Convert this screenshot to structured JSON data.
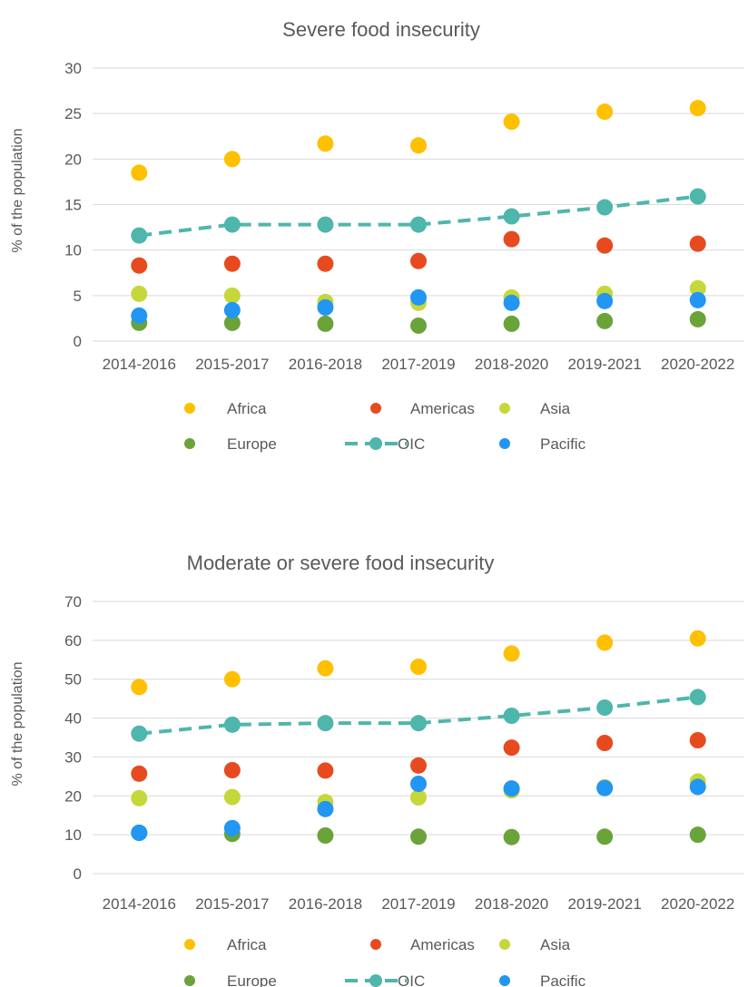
{
  "chart_data": [
    {
      "type": "scatter",
      "title": "Severe food insecurity",
      "xlabel": "",
      "ylabel": "% of the population",
      "ylim": [
        0,
        30
      ],
      "yticks": [
        0,
        5,
        10,
        15,
        20,
        25,
        30
      ],
      "grid": true,
      "legend_position": "bottom",
      "categories": [
        "2014-2016",
        "2015-2017",
        "2016-2018",
        "2017-2019",
        "2018-2020",
        "2019-2021",
        "2020-2022"
      ],
      "series": [
        {
          "name": "Africa",
          "style": "marker",
          "color": "#FFC000",
          "values": [
            18.5,
            20.0,
            21.7,
            21.5,
            24.1,
            25.2,
            25.6
          ]
        },
        {
          "name": "Americas",
          "style": "marker",
          "color": "#E84A1F",
          "values": [
            8.3,
            8.5,
            8.5,
            8.8,
            11.2,
            10.5,
            10.7
          ]
        },
        {
          "name": "Asia",
          "style": "marker",
          "color": "#C5D73A",
          "values": [
            5.2,
            5.0,
            4.3,
            4.2,
            4.8,
            5.2,
            5.8
          ]
        },
        {
          "name": "Europe",
          "style": "marker",
          "color": "#6AA339",
          "values": [
            2.0,
            2.0,
            1.9,
            1.7,
            1.9,
            2.2,
            2.4
          ]
        },
        {
          "name": "OIC",
          "style": "dashed-line-marker",
          "color": "#4FB6AC",
          "values": [
            11.6,
            12.8,
            12.8,
            12.8,
            13.7,
            14.7,
            15.9
          ]
        },
        {
          "name": "Pacific",
          "style": "marker",
          "color": "#2196F3",
          "values": [
            2.8,
            3.4,
            3.7,
            4.8,
            4.2,
            4.4,
            4.5
          ]
        }
      ]
    },
    {
      "type": "scatter",
      "title": "Moderate or severe food insecurity",
      "xlabel": "",
      "ylabel": "% of the population",
      "ylim": [
        0,
        70
      ],
      "yticks": [
        0,
        10,
        20,
        30,
        40,
        50,
        60,
        70
      ],
      "grid": true,
      "legend_position": "bottom",
      "categories": [
        "2014-2016",
        "2015-2017",
        "2016-2018",
        "2017-2019",
        "2018-2020",
        "2019-2021",
        "2020-2022"
      ],
      "series": [
        {
          "name": "Africa",
          "style": "marker",
          "color": "#FFC000",
          "values": [
            48.0,
            50.0,
            52.8,
            53.2,
            56.6,
            59.4,
            60.5
          ]
        },
        {
          "name": "Americas",
          "style": "marker",
          "color": "#E84A1F",
          "values": [
            25.7,
            26.6,
            26.5,
            27.8,
            32.4,
            33.6,
            34.3
          ]
        },
        {
          "name": "Asia",
          "style": "marker",
          "color": "#C5D73A",
          "values": [
            19.4,
            19.7,
            18.4,
            19.6,
            21.4,
            22.2,
            23.7
          ]
        },
        {
          "name": "Europe",
          "style": "marker",
          "color": "#6AA339",
          "values": [
            10.5,
            10.2,
            9.8,
            9.5,
            9.4,
            9.5,
            10.0
          ]
        },
        {
          "name": "OIC",
          "style": "dashed-line-marker",
          "color": "#4FB6AC",
          "values": [
            36.0,
            38.3,
            38.7,
            38.7,
            40.6,
            42.7,
            45.4
          ]
        },
        {
          "name": "Pacific",
          "style": "marker",
          "color": "#2196F3",
          "values": [
            10.5,
            11.7,
            16.6,
            23.1,
            21.9,
            22.0,
            22.3
          ]
        }
      ]
    }
  ]
}
